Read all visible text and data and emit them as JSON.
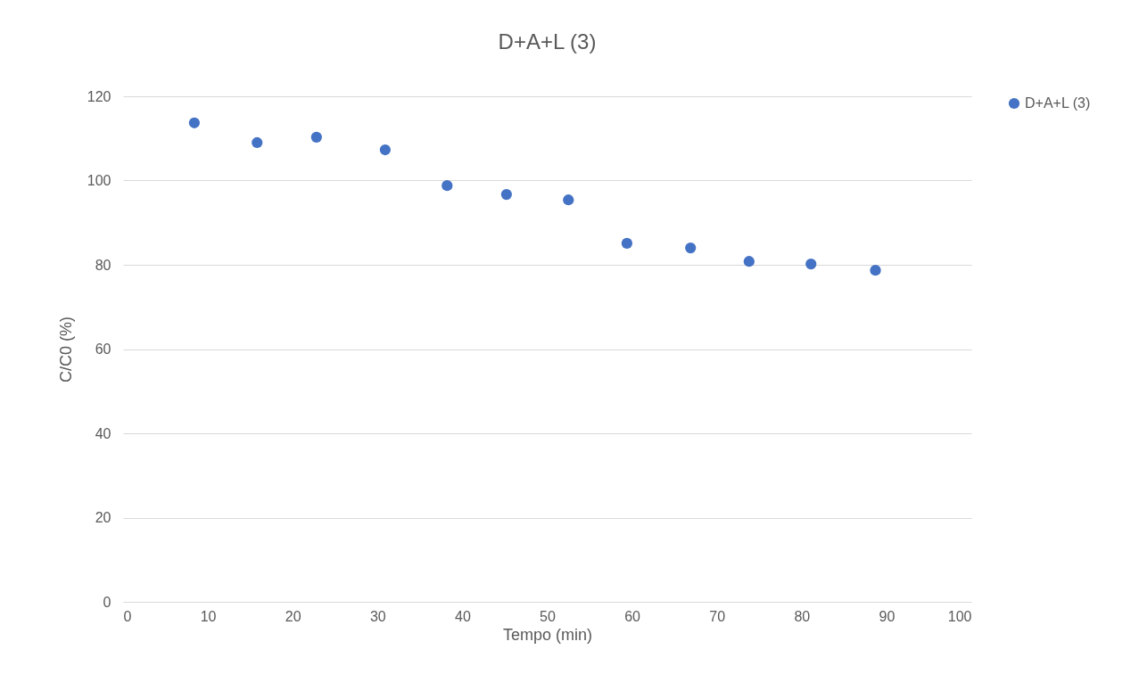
{
  "chart_data": {
    "type": "scatter",
    "title": "D+A+L (3)",
    "xlabel": "Tempo (min)",
    "ylabel": "C/C0 (%)",
    "x": [
      8.4,
      15.8,
      22.8,
      30.9,
      38.2,
      45.2,
      52.5,
      59.4,
      66.9,
      73.8,
      81.1,
      88.7
    ],
    "series": [
      {
        "name": "D+A+L (3)",
        "color": "#4472c4",
        "values": [
          113.7,
          109.0,
          110.3,
          107.3,
          98.8,
          96.7,
          95.4,
          85.1,
          84.0,
          80.8,
          80.2,
          78.7
        ]
      }
    ],
    "xlim": [
      0,
      100
    ],
    "xticks": [
      0,
      10,
      20,
      30,
      40,
      50,
      60,
      70,
      80,
      90,
      100
    ],
    "ylim": [
      0,
      120
    ],
    "yticks": [
      0,
      20,
      40,
      60,
      80,
      100,
      120
    ],
    "grid": "y",
    "legend": "right",
    "marker": "circle"
  }
}
